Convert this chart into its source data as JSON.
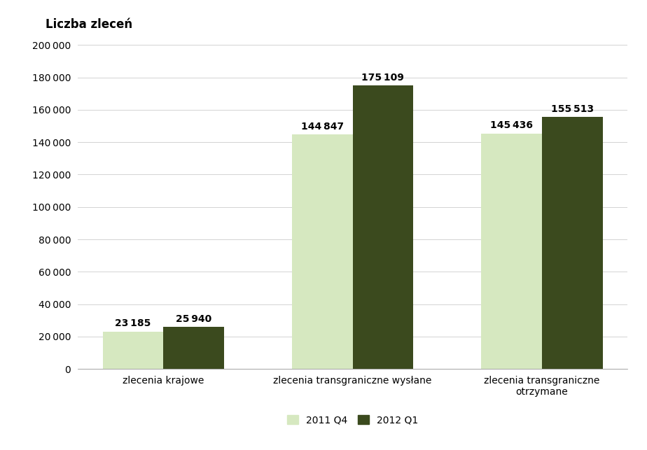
{
  "categories": [
    "zlecenia krajowe",
    "zlecenia transgraniczne wysłane",
    "zlecenia transgraniczne\notrzymane"
  ],
  "values_2011q4": [
    23185,
    144847,
    145436
  ],
  "values_2012q1": [
    25940,
    175109,
    155513
  ],
  "color_2011q4": "#d6e8c0",
  "color_2012q1": "#3b4a1e",
  "title": "Liczba zleceń",
  "ylim": [
    0,
    200000
  ],
  "yticks": [
    0,
    20000,
    40000,
    60000,
    80000,
    100000,
    120000,
    140000,
    160000,
    180000,
    200000
  ],
  "legend_labels": [
    "2011 Q4",
    "2012 Q1"
  ],
  "bar_width": 0.32,
  "label_fontsize": 10,
  "value_fontsize": 10,
  "title_fontsize": 12
}
